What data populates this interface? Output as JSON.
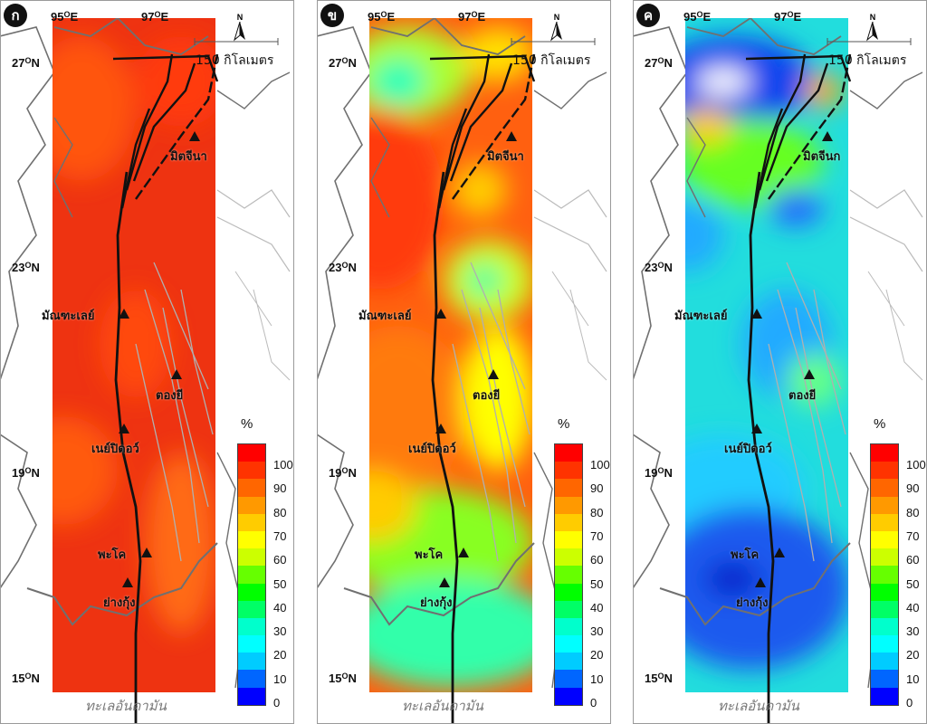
{
  "panels": [
    {
      "badge": "ก",
      "cities": [
        "มิตจีนา",
        "มัณฑะเลย์",
        "ตองยี",
        "เนย์ปิดอว์",
        "พะโค",
        "ย่างกุ้ง"
      ]
    },
    {
      "badge": "ข",
      "cities": [
        "มิตจีนา",
        "มัณฑะเลย์",
        "ตองยี",
        "เนย์ปิดอว์",
        "พะโค",
        "ย่างกุ้ง"
      ]
    },
    {
      "badge": "ค",
      "cities": [
        "มิตจีนก",
        "มัณฑะเลย์",
        "ตองยี",
        "เนย์ปิดอว์",
        "พะโค",
        "ย่างกุ้ง"
      ]
    }
  ],
  "axes": {
    "lon_labels": [
      "95",
      "97"
    ],
    "lon_suffix": "E",
    "lat_labels": [
      "27",
      "23",
      "19",
      "15"
    ],
    "lat_suffix": "N",
    "degree_symbol": "O"
  },
  "scale_bar": {
    "text": "150 กิโลเมตร"
  },
  "north_arrow": {
    "letter": "N"
  },
  "sea_label": "ทะเลอันดามัน",
  "legend": {
    "unit": "%",
    "ticks": [
      "100",
      "90",
      "80",
      "70",
      "60",
      "50",
      "40",
      "30",
      "20",
      "10",
      "0"
    ],
    "colors": [
      "#ff0000",
      "#ff3300",
      "#ff6600",
      "#ff9900",
      "#ffcc00",
      "#ffff00",
      "#ccff00",
      "#66ff00",
      "#00ff00",
      "#00ff66",
      "#00ffcc",
      "#00ffff",
      "#00ccff",
      "#0066ff",
      "#0000ff"
    ]
  },
  "map_colors": {
    "panel_a_base": "#ee3311",
    "panel_b_base": "#ff6010",
    "panel_c_base": "#22dddd",
    "fault": "#111111",
    "minor_fault": "#b0b0b0",
    "coast": "#707070"
  }
}
